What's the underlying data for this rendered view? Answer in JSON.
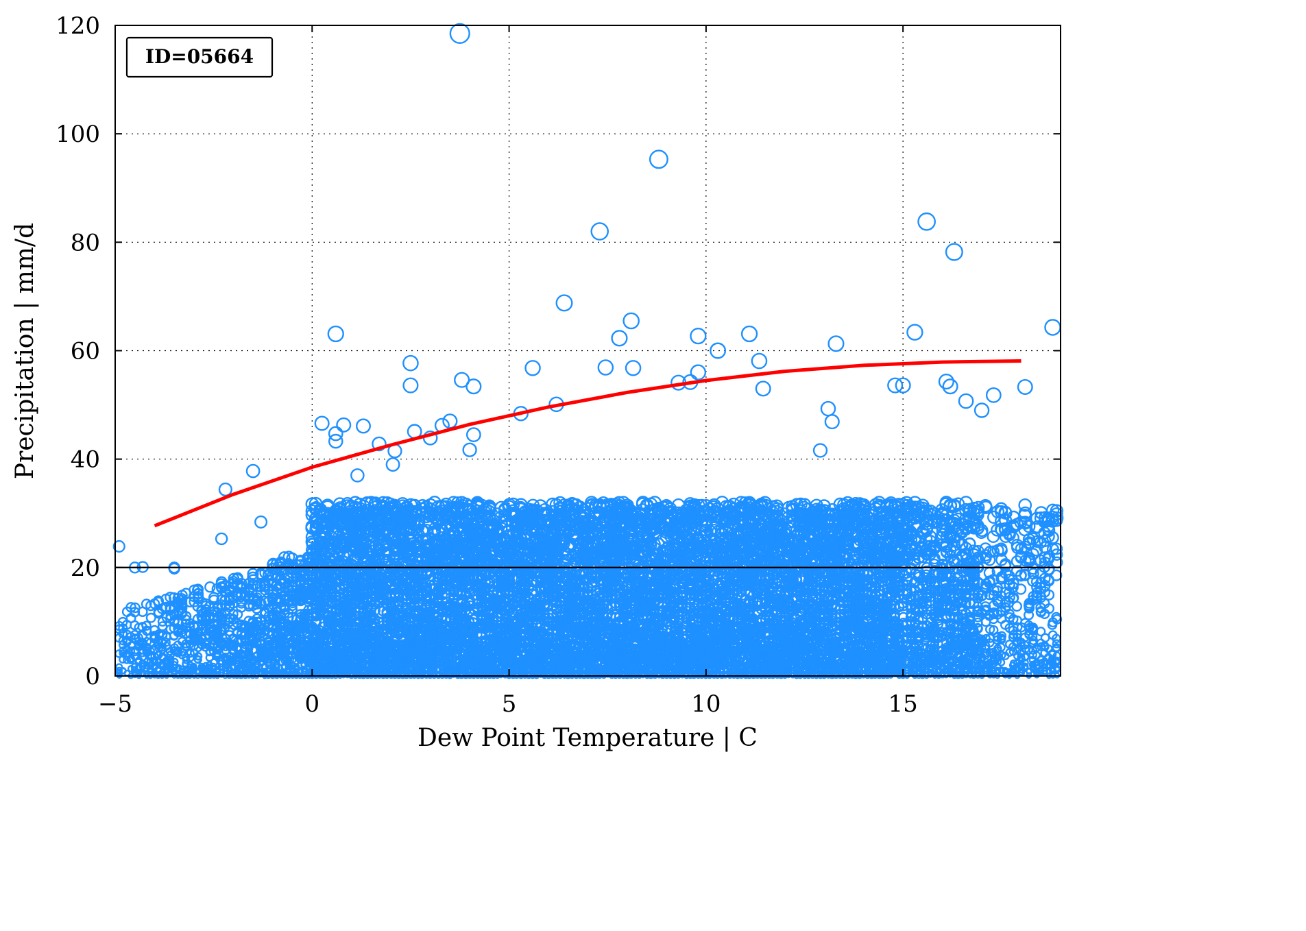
{
  "chart_data": {
    "type": "scatter",
    "xlabel": "Dew Point Temperature | C",
    "ylabel": "Precipitation | mm/d",
    "annotation": "ID=05664",
    "xlim": [
      -5,
      19
    ],
    "ylim": [
      0,
      120
    ],
    "x_ticks": [
      -5,
      0,
      5,
      10,
      15
    ],
    "x_tick_labels": [
      "−5",
      "0",
      "5",
      "10",
      "15"
    ],
    "y_ticks": [
      0,
      20,
      40,
      60,
      80,
      100,
      120
    ],
    "y_tick_labels": [
      "0",
      "20",
      "40",
      "60",
      "80",
      "100",
      "120"
    ],
    "grid": true,
    "threshold_line": 20,
    "colors": {
      "points": "#1e90ff",
      "fit": "#ff0000",
      "threshold": "#000000"
    },
    "fit_curve": {
      "x": [
        -4.0,
        -2.0,
        0.0,
        2.0,
        4.0,
        6.0,
        8.0,
        10.0,
        12.0,
        14.0,
        16.0,
        18.0
      ],
      "y": [
        27.7,
        33.5,
        38.5,
        42.6,
        46.4,
        49.6,
        52.3,
        54.5,
        56.2,
        57.3,
        57.9,
        58.1
      ]
    },
    "outliers": {
      "x": [
        3.75,
        8.8,
        7.3,
        15.6,
        16.3,
        6.4,
        8.1,
        18.8,
        0.6,
        7.8,
        9.8,
        11.1,
        13.3,
        15.3,
        10.3,
        2.5,
        2.5,
        3.8,
        4.1,
        5.6,
        7.45,
        8.15,
        11.35,
        11.45,
        9.8,
        9.3,
        9.6,
        15.0,
        6.2,
        5.3,
        14.8,
        16.1,
        16.2,
        18.1,
        16.6,
        17.3,
        17.0,
        13.1,
        13.2,
        12.9,
        0.25,
        0.6,
        0.6,
        0.8,
        1.3,
        2.6,
        3.0,
        3.3,
        4.0,
        4.1,
        3.5,
        1.7,
        2.1,
        2.05,
        1.15,
        -2.2,
        -1.5,
        -4.9,
        -4.3,
        -4.5,
        -3.5,
        -3.5,
        -2.3,
        -1.3
      ],
      "y": [
        118.5,
        95.3,
        82.0,
        83.8,
        78.2,
        68.8,
        65.5,
        64.3,
        63.1,
        62.3,
        62.7,
        63.1,
        61.3,
        63.4,
        60.0,
        57.7,
        53.6,
        54.6,
        53.4,
        56.8,
        56.9,
        56.8,
        58.1,
        53.0,
        56.0,
        54.1,
        54.2,
        53.6,
        50.1,
        48.4,
        53.6,
        54.3,
        53.4,
        53.3,
        50.7,
        51.8,
        49.0,
        49.3,
        46.9,
        41.6,
        46.6,
        44.7,
        43.3,
        46.3,
        46.1,
        45.1,
        43.9,
        46.2,
        41.7,
        44.5,
        47.0,
        42.8,
        41.5,
        39.0,
        37.0,
        34.4,
        37.8,
        23.9,
        20.1,
        20.0,
        19.8,
        20.0,
        25.3,
        28.4
      ]
    },
    "bulk_density_description": "thousands of points below ~35 mm/d spanning x from -5 to 19, densest between x 0 and 15"
  }
}
